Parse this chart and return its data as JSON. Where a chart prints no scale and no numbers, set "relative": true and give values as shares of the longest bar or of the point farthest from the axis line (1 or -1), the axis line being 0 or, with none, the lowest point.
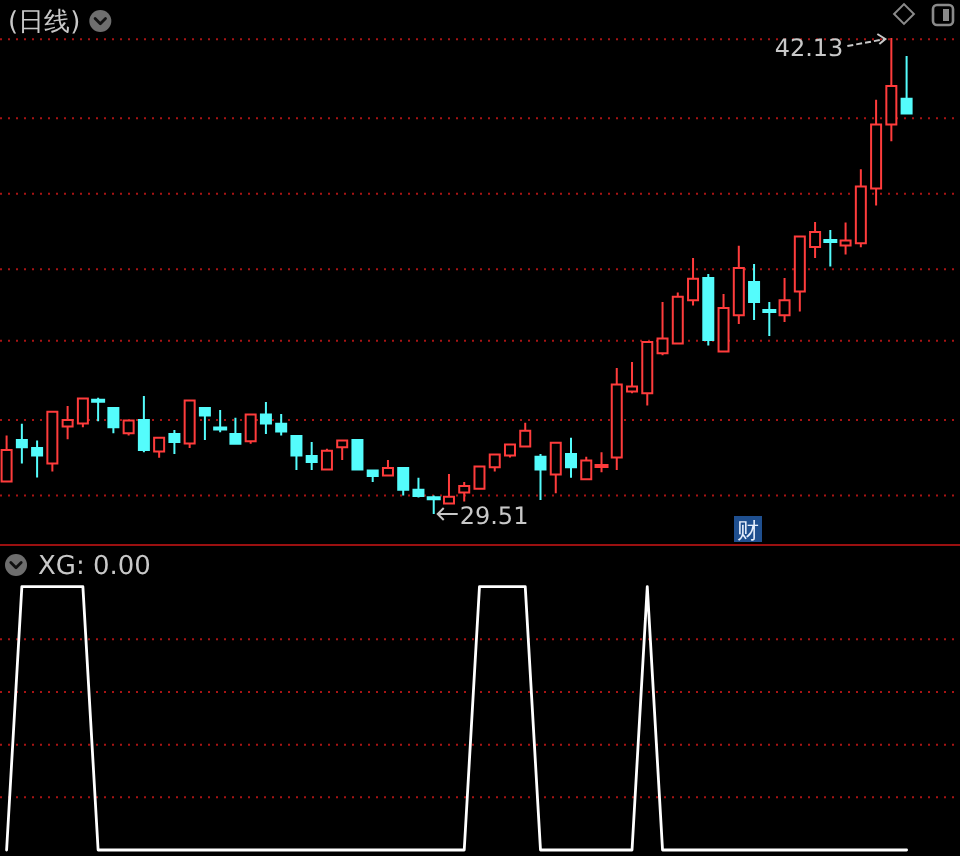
{
  "chart_data": [
    {
      "type": "candlestick",
      "title": "(日线)",
      "categories": [
        null,
        null,
        null,
        null,
        null,
        null,
        null,
        null,
        null,
        null,
        null,
        null,
        null,
        null,
        null,
        null,
        null,
        null,
        null,
        null,
        null,
        null,
        null,
        null,
        null,
        null,
        null,
        null,
        null,
        null,
        null,
        null,
        null,
        null,
        null,
        null,
        null,
        null,
        null,
        null,
        null,
        null,
        null,
        null,
        null,
        null,
        null,
        null,
        null,
        null,
        null,
        null,
        null,
        null,
        null,
        null,
        null,
        null,
        null,
        null
      ],
      "ohlc": [
        [
          30.37,
          31.59,
          30.37,
          31.21
        ],
        [
          31.47,
          31.9,
          30.85,
          31.28
        ],
        [
          31.26,
          31.46,
          30.48,
          31.06
        ],
        [
          30.85,
          32.22,
          30.64,
          32.22
        ],
        [
          31.83,
          32.37,
          31.49,
          32.0
        ],
        [
          31.91,
          32.57,
          31.81,
          32.57
        ],
        [
          32.52,
          32.59,
          31.97,
          32.5
        ],
        [
          32.32,
          32.32,
          31.65,
          31.81
        ],
        [
          31.65,
          31.99,
          31.59,
          31.99
        ],
        [
          32.0,
          32.64,
          31.15,
          31.21
        ],
        [
          31.17,
          31.53,
          31.0,
          31.53
        ],
        [
          31.63,
          31.74,
          31.1,
          31.42
        ],
        [
          31.38,
          32.52,
          31.26,
          32.52
        ],
        [
          32.32,
          32.32,
          31.47,
          32.12
        ],
        [
          31.79,
          32.27,
          31.68,
          31.77
        ],
        [
          31.63,
          32.06,
          31.37,
          31.37
        ],
        [
          31.44,
          32.15,
          31.37,
          32.15
        ],
        [
          32.15,
          32.48,
          31.63,
          31.91
        ],
        [
          31.9,
          32.16,
          31.59,
          31.7
        ],
        [
          31.58,
          31.58,
          30.68,
          31.06
        ],
        [
          31.05,
          31.42,
          30.68,
          30.89
        ],
        [
          30.69,
          31.24,
          30.69,
          31.19
        ],
        [
          31.28,
          31.46,
          30.94,
          31.46
        ],
        [
          31.47,
          31.47,
          30.69,
          30.69
        ],
        [
          30.66,
          30.66,
          30.36,
          30.52
        ],
        [
          30.53,
          30.94,
          30.53,
          30.73
        ],
        [
          30.73,
          30.73,
          30.0,
          30.15
        ],
        [
          30.15,
          30.47,
          29.95,
          29.99
        ],
        [
          29.93,
          30.0,
          29.51,
          29.92
        ],
        [
          29.79,
          30.57,
          29.79,
          29.97
        ],
        [
          30.08,
          30.36,
          29.84,
          30.25
        ],
        [
          30.18,
          30.77,
          30.18,
          30.77
        ],
        [
          30.75,
          31.09,
          30.64,
          31.09
        ],
        [
          31.06,
          31.35,
          31.01,
          31.35
        ],
        [
          31.3,
          31.93,
          31.3,
          31.72
        ],
        [
          31.03,
          31.1,
          29.88,
          30.69
        ],
        [
          30.56,
          31.4,
          30.06,
          31.4
        ],
        [
          31.1,
          31.53,
          30.47,
          30.75
        ],
        [
          30.43,
          31.03,
          30.43,
          30.93
        ],
        [
          30.77,
          31.15,
          30.62,
          30.8
        ],
        [
          31.01,
          33.38,
          30.68,
          32.94
        ],
        [
          32.76,
          33.54,
          32.71,
          32.89
        ],
        [
          32.71,
          34.07,
          32.39,
          34.07
        ],
        [
          33.77,
          35.13,
          33.72,
          34.16
        ],
        [
          34.03,
          35.38,
          34.03,
          35.27
        ],
        [
          35.18,
          36.3,
          35.04,
          35.75
        ],
        [
          35.77,
          35.87,
          33.98,
          34.12
        ],
        [
          33.82,
          35.34,
          33.82,
          34.97
        ],
        [
          34.78,
          36.62,
          34.55,
          36.03
        ],
        [
          35.66,
          36.14,
          34.65,
          35.13
        ],
        [
          34.9,
          35.13,
          34.23,
          34.88
        ],
        [
          34.78,
          35.77,
          34.6,
          35.18
        ],
        [
          35.41,
          36.87,
          34.88,
          36.87
        ],
        [
          36.59,
          37.25,
          36.3,
          36.99
        ],
        [
          36.76,
          37.04,
          36.07,
          36.74
        ],
        [
          36.63,
          37.24,
          36.39,
          36.76
        ],
        [
          36.69,
          38.65,
          36.58,
          38.19
        ],
        [
          38.14,
          40.49,
          37.69,
          39.84
        ],
        [
          39.84,
          42.13,
          39.39,
          40.86
        ],
        [
          40.52,
          41.65,
          40.1,
          40.13
        ]
      ],
      "colors": [
        "#ff3c3c",
        "#54fcfc",
        "#54fcfc",
        "#ff3c3c",
        "#ff3c3c",
        "#ff3c3c",
        "#54fcfc",
        "#54fcfc",
        "#ff3c3c",
        "#54fcfc",
        "#ff3c3c",
        "#54fcfc",
        "#ff3c3c",
        "#54fcfc",
        "#54fcfc",
        "#54fcfc",
        "#ff3c3c",
        "#54fcfc",
        "#54fcfc",
        "#54fcfc",
        "#54fcfc",
        "#ff3c3c",
        "#ff3c3c",
        "#54fcfc",
        "#54fcfc",
        "#ff3c3c",
        "#54fcfc",
        "#54fcfc",
        "#54fcfc",
        "#ff3c3c",
        "#ff3c3c",
        "#ff3c3c",
        "#ff3c3c",
        "#ff3c3c",
        "#ff3c3c",
        "#54fcfc",
        "#ff3c3c",
        "#54fcfc",
        "#ff3c3c",
        "#ff3c3c",
        "#ff3c3c",
        "#ff3c3c",
        "#ff3c3c",
        "#ff3c3c",
        "#ff3c3c",
        "#ff3c3c",
        "#54fcfc",
        "#ff3c3c",
        "#ff3c3c",
        "#54fcfc",
        "#54fcfc",
        "#ff3c3c",
        "#ff3c3c",
        "#ff3c3c",
        "#54fcfc",
        "#ff3c3c",
        "#ff3c3c",
        "#ff3c3c",
        "#ff3c3c",
        "#54fcfc"
      ],
      "ref_lines": [
        {
          "axis": "y",
          "value": 30.0,
          "color": "#a81414",
          "line_style": "dotted"
        },
        {
          "axis": "y",
          "value": 32.0,
          "color": "#a81414",
          "line_style": "dotted"
        },
        {
          "axis": "y",
          "value": 34.1,
          "color": "#a81414",
          "line_style": "dotted"
        },
        {
          "axis": "y",
          "value": 36.0,
          "color": "#a81414",
          "line_style": "dotted"
        },
        {
          "axis": "y",
          "value": 38.0,
          "color": "#a81414",
          "line_style": "dotted"
        },
        {
          "axis": "y",
          "value": 40.0,
          "color": "#a81414",
          "line_style": "dotted"
        },
        {
          "axis": "y",
          "value": 42.1,
          "color": "#a81414",
          "line_style": "dotted"
        }
      ],
      "annotations": [
        {
          "text": "42.13",
          "y": 42.13
        },
        "29.51",
        "财"
      ]
    },
    {
      "type": "line",
      "title": "XG: 0.00",
      "categories": [
        null,
        null,
        null,
        null,
        null,
        null,
        null,
        null,
        null,
        null,
        null,
        null,
        null,
        null,
        null,
        null,
        null,
        null,
        null,
        null,
        null,
        null,
        null,
        null,
        null,
        null,
        null,
        null,
        null,
        null,
        null,
        null,
        null,
        null,
        null,
        null,
        null,
        null,
        null,
        null,
        null,
        null,
        null,
        null,
        null,
        null,
        null,
        null,
        null,
        null,
        null,
        null,
        null,
        null,
        null,
        null,
        null,
        null,
        null,
        null
      ],
      "series": [
        {
          "color": "#ffffff",
          "values": [
            0,
            1,
            1,
            1,
            1,
            1,
            0,
            0,
            0,
            0,
            0,
            0,
            0,
            0,
            0,
            0,
            0,
            0,
            0,
            0,
            0,
            0,
            0,
            0,
            0,
            0,
            0,
            0,
            0,
            0,
            0,
            1,
            1,
            1,
            1,
            0,
            0,
            0,
            0,
            0,
            0,
            0,
            1,
            0,
            0,
            0,
            0,
            0,
            0,
            0,
            0,
            0,
            0,
            0,
            0,
            0,
            0,
            0,
            0,
            0
          ]
        }
      ],
      "relative": true,
      "ref_lines": [
        {
          "axis": "y",
          "value": 0.2,
          "color": "#a81414",
          "line_style": "dotted"
        },
        {
          "axis": "y",
          "value": 0.4,
          "color": "#a81414",
          "line_style": "dotted"
        },
        {
          "axis": "y",
          "value": 0.6,
          "color": "#a81414",
          "line_style": "dotted"
        },
        {
          "axis": "y",
          "value": 0.8,
          "color": "#a81414",
          "line_style": "dotted"
        }
      ]
    }
  ]
}
